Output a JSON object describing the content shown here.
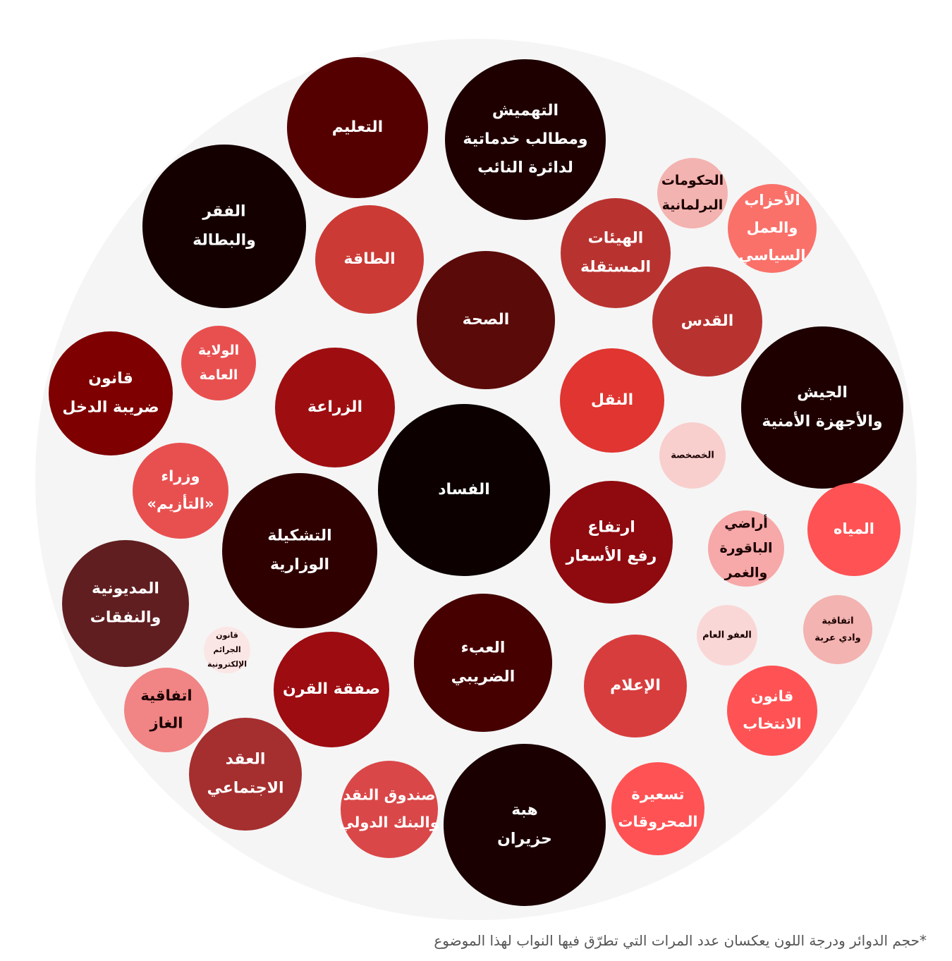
{
  "chart_data": {
    "type": "bubble",
    "note": "*حجم الدوائر ودرجة اللون يعكسان عدد المرات التي تطرّق فيها النواب لهذا الموضوع",
    "colors": {
      "container": "#f5f5f5",
      "darkest": "#0c0000",
      "lightest": "#fbe6e6"
    },
    "bubbles": [
      {
        "lines": [
          "التعليم"
        ],
        "size": 100,
        "color": "#550000",
        "text_color": "#ffffff"
      },
      {
        "lines": [
          "التهميش",
          "ومطالب خدماتية",
          "لدائرة النائب"
        ],
        "size": 114,
        "color": "#1e0000",
        "text_color": "#ffffff"
      },
      {
        "lines": [
          "الفقر",
          "والبطالة"
        ],
        "size": 116,
        "color": "#150000",
        "text_color": "#ffffff"
      },
      {
        "lines": [
          "الطاقة"
        ],
        "size": 77,
        "color": "#cc3a35",
        "text_color": "#ffffff"
      },
      {
        "lines": [
          "الحكومات",
          "البرلمانية"
        ],
        "size": 50,
        "color": "#f3b3b0",
        "text_color": "#1a0000"
      },
      {
        "lines": [
          "الأحزاب",
          "والعمل",
          "السياسي"
        ],
        "size": 63,
        "color": "#fa716a",
        "text_color": "#ffffff"
      },
      {
        "lines": [
          "الهيئات",
          "المستقلة"
        ],
        "size": 78,
        "color": "#b83330",
        "text_color": "#ffffff"
      },
      {
        "lines": [
          "الصحة"
        ],
        "size": 98,
        "color": "#5a0b09",
        "text_color": "#ffffff"
      },
      {
        "lines": [
          "القدس"
        ],
        "size": 78,
        "color": "#b83330",
        "text_color": "#ffffff"
      },
      {
        "lines": [
          "قانون",
          "ضريبة الدخل"
        ],
        "size": 88,
        "color": "#7e0000",
        "text_color": "#ffffff"
      },
      {
        "lines": [
          "الولاية",
          "العامة"
        ],
        "size": 53,
        "color": "#e85050",
        "text_color": "#ffffff"
      },
      {
        "lines": [
          "الزراعة"
        ],
        "size": 85,
        "color": "#9e0e11",
        "text_color": "#ffffff"
      },
      {
        "lines": [
          "النقل"
        ],
        "size": 74,
        "color": "#e03530",
        "text_color": "#ffffff"
      },
      {
        "lines": [
          "الجيش",
          "والأجهزة الأمنية"
        ],
        "size": 115,
        "color": "#1e0000",
        "text_color": "#ffffff"
      },
      {
        "lines": [
          "الخصخصة"
        ],
        "size": 47,
        "color": "#f8cfcd",
        "text_color": "#1a0000"
      },
      {
        "lines": [
          "وزراء",
          "«التأزيم»"
        ],
        "size": 68,
        "color": "#e85050",
        "text_color": "#ffffff"
      },
      {
        "lines": [
          "الفساد"
        ],
        "size": 122,
        "color": "#0c0000",
        "text_color": "#ffffff"
      },
      {
        "lines": [
          "ارتفاع",
          "رفع الأسعار"
        ],
        "size": 87,
        "color": "#8e0a0f",
        "text_color": "#ffffff"
      },
      {
        "lines": [
          "المياه"
        ],
        "size": 66,
        "color": "#ff5254",
        "text_color": "#ffffff"
      },
      {
        "lines": [
          "أراضي",
          "الباقورة",
          "والغمر"
        ],
        "size": 54,
        "color": "#f7a8a8",
        "text_color": "#1a0000"
      },
      {
        "lines": [
          "التشكيلة",
          "الوزارية"
        ],
        "size": 110,
        "color": "#2e0000",
        "text_color": "#ffffff"
      },
      {
        "lines": [
          "المديونية",
          "والنفقات"
        ],
        "size": 90,
        "color": "#601e20",
        "text_color": "#ffffff"
      },
      {
        "lines": [
          "اتفاقية",
          "وادي عربة"
        ],
        "size": 49,
        "color": "#f3b3b0",
        "text_color": "#1a0000"
      },
      {
        "lines": [
          "العفو العام"
        ],
        "size": 43,
        "color": "#fad7d7",
        "text_color": "#1a0000"
      },
      {
        "lines": [
          "العبء",
          "الضريبي"
        ],
        "size": 98,
        "color": "#460000",
        "text_color": "#ffffff"
      },
      {
        "lines": [
          "قانون",
          "الجرائم",
          "الإلكترونية"
        ],
        "size": 33,
        "color": "#fbe6e6",
        "text_color": "#1a0000"
      },
      {
        "lines": [
          "صفقة القرن"
        ],
        "size": 82,
        "color": "#9c0c11",
        "text_color": "#ffffff"
      },
      {
        "lines": [
          "الإعلام"
        ],
        "size": 73,
        "color": "#d83d3d",
        "text_color": "#ffffff"
      },
      {
        "lines": [
          "قانون",
          "الانتخاب"
        ],
        "size": 64,
        "color": "#ff5254",
        "text_color": "#ffffff"
      },
      {
        "lines": [
          "اتفاقية",
          "الغاز"
        ],
        "size": 60,
        "color": "#f18484",
        "text_color": "#1a0000"
      },
      {
        "lines": [
          "العقد",
          "الاجتماعي"
        ],
        "size": 80,
        "color": "#a52e2f",
        "text_color": "#ffffff"
      },
      {
        "lines": [
          "صندوق النقد",
          "والبنك الدولي"
        ],
        "size": 69,
        "color": "#da4748",
        "text_color": "#ffffff"
      },
      {
        "lines": [
          "هبة",
          "حزيران"
        ],
        "size": 115,
        "color": "#1a0000",
        "text_color": "#ffffff"
      },
      {
        "lines": [
          "تسعيرة",
          "المحروقات"
        ],
        "size": 66,
        "color": "#ff5254",
        "text_color": "#ffffff"
      }
    ]
  }
}
